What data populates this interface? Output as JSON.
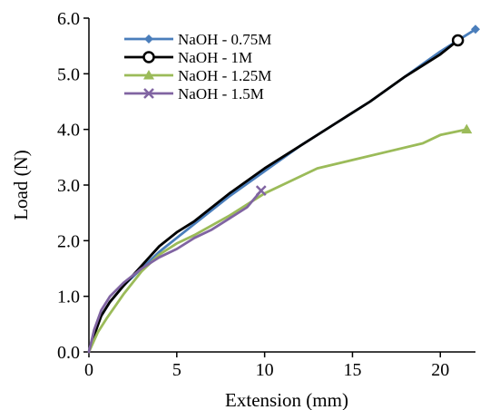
{
  "chart_data": {
    "type": "line",
    "title": "",
    "xlabel": "Extension (mm)",
    "ylabel": "Load (N)",
    "xlim": [
      0,
      22
    ],
    "ylim": [
      0,
      6
    ],
    "x_ticks": [
      0,
      5,
      10,
      15,
      20
    ],
    "x_tick_labels": [
      "0",
      "5",
      "10",
      "15",
      "20"
    ],
    "y_ticks": [
      0,
      1,
      2,
      3,
      4,
      5,
      6
    ],
    "y_tick_labels": [
      "0.0",
      "1.0",
      "2.0",
      "3.0",
      "4.0",
      "5.0",
      "6.0"
    ],
    "grid": false,
    "legend_position": "top-left",
    "series": [
      {
        "name": "NaOH - 0.75M",
        "color": "#4a7ebb",
        "marker": "diamond",
        "x": [
          0,
          0.3,
          0.7,
          1.2,
          2,
          3,
          4,
          5,
          6,
          8,
          10,
          12,
          14,
          16,
          18,
          20,
          22
        ],
        "y": [
          0,
          0.35,
          0.65,
          0.9,
          1.2,
          1.5,
          1.8,
          2.05,
          2.3,
          2.8,
          3.25,
          3.7,
          4.1,
          4.5,
          4.95,
          5.4,
          5.8
        ]
      },
      {
        "name": "NaOH - 1M",
        "color": "#000000",
        "marker": "circle",
        "x": [
          0,
          0.3,
          0.7,
          1.2,
          2,
          3,
          4,
          5,
          6,
          8,
          10,
          12,
          14,
          16,
          18,
          20,
          21
        ],
        "y": [
          0,
          0.3,
          0.65,
          0.9,
          1.2,
          1.55,
          1.9,
          2.15,
          2.35,
          2.85,
          3.3,
          3.7,
          4.1,
          4.5,
          4.95,
          5.35,
          5.6
        ]
      },
      {
        "name": "NaOH - 1.25M",
        "color": "#9bbb59",
        "marker": "triangle",
        "x": [
          0,
          0.5,
          1,
          2,
          3,
          4,
          5,
          6,
          8,
          10,
          11,
          13,
          15,
          17,
          19,
          20,
          21.5
        ],
        "y": [
          0,
          0.35,
          0.6,
          1.05,
          1.45,
          1.75,
          1.95,
          2.1,
          2.45,
          2.85,
          3.0,
          3.3,
          3.45,
          3.6,
          3.75,
          3.9,
          4.0
        ]
      },
      {
        "name": "NaOH - 1.5M",
        "color": "#8064a2",
        "marker": "x",
        "x": [
          0,
          0.3,
          0.7,
          1.2,
          2,
          3,
          4,
          5,
          6,
          7,
          8,
          9,
          9.8
        ],
        "y": [
          0,
          0.4,
          0.75,
          1.0,
          1.25,
          1.5,
          1.7,
          1.85,
          2.05,
          2.2,
          2.4,
          2.6,
          2.9
        ]
      }
    ]
  }
}
